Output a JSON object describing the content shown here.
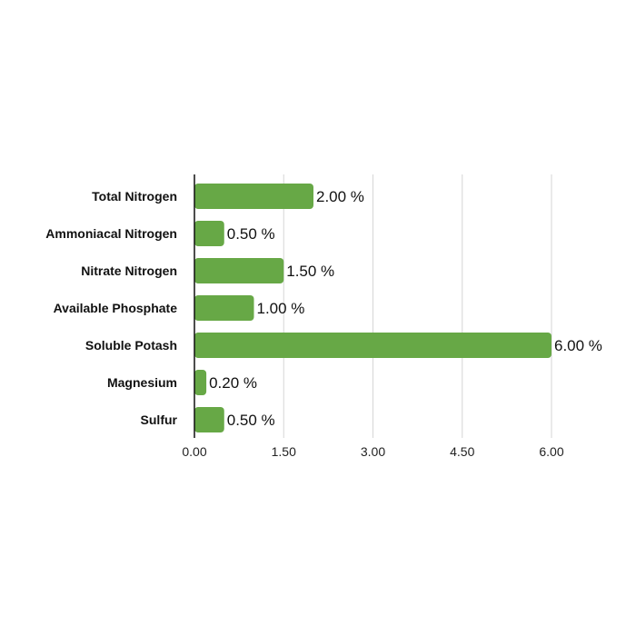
{
  "chart_data": {
    "type": "bar",
    "orientation": "horizontal",
    "categories": [
      "Total Nitrogen",
      "Ammoniacal Nitrogen",
      "Nitrate Nitrogen",
      "Available Phosphate",
      "Soluble Potash",
      "Magnesium",
      "Sulfur"
    ],
    "values": [
      2.0,
      0.5,
      1.5,
      1.0,
      6.0,
      0.2,
      0.5
    ],
    "data_labels": [
      "2.00 %",
      "0.50 %",
      "1.50 %",
      "1.00 %",
      "6.00 %",
      "0.20 %",
      "0.50 %"
    ],
    "xlim": [
      0,
      6
    ],
    "xticks": [
      "0.00",
      "1.50",
      "3.00",
      "4.50",
      "6.00"
    ],
    "grid": true,
    "bar_color": "#67a846",
    "title": "",
    "xlabel": "",
    "ylabel": ""
  }
}
